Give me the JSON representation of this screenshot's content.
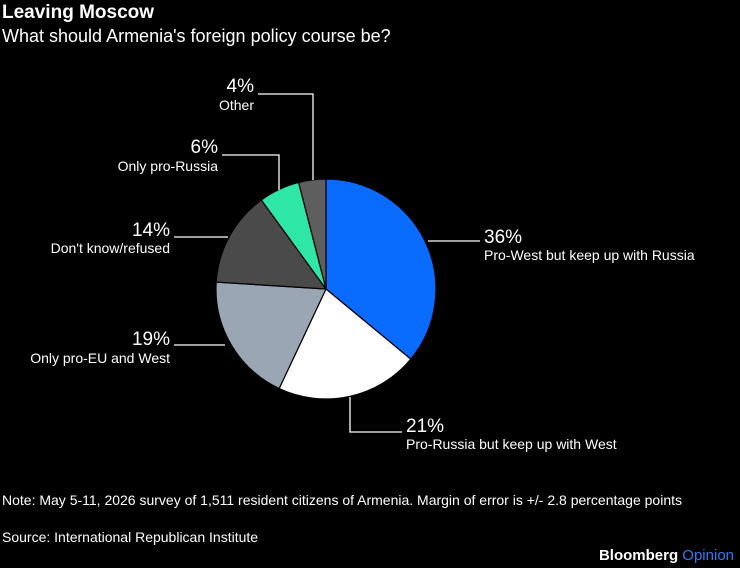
{
  "header": {
    "title": "Leaving Moscow",
    "subtitle": "What should Armenia's foreign policy course be?"
  },
  "chart_data": {
    "type": "pie",
    "title": "Leaving Moscow",
    "subtitle": "What should Armenia's foreign policy course be?",
    "slices": [
      {
        "label": "Pro-West but keep up with Russia",
        "value": 36,
        "display": "36%",
        "color": "#0a6cff"
      },
      {
        "label": "Pro-Russia but keep up with West",
        "value": 21,
        "display": "21%",
        "color": "#ffffff"
      },
      {
        "label": "Only pro-EU and West",
        "value": 19,
        "display": "19%",
        "color": "#9aa6b4"
      },
      {
        "label": "Don't know/refused",
        "value": 14,
        "display": "14%",
        "color": "#4a4a4a"
      },
      {
        "label": "Only pro-Russia",
        "value": 6,
        "display": "6%",
        "color": "#2ee6a6"
      },
      {
        "label": "Other",
        "value": 4,
        "display": "4%",
        "color": "#5e5e5e"
      }
    ]
  },
  "footer": {
    "note": "Note: May 5-11, 2026 survey of 1,511 resident citizens of Armenia. Margin of error is +/- 2.8 percentage points",
    "source": "Source: International Republican Institute",
    "brand_name": "Bloomberg",
    "brand_suffix": "Opinion"
  }
}
